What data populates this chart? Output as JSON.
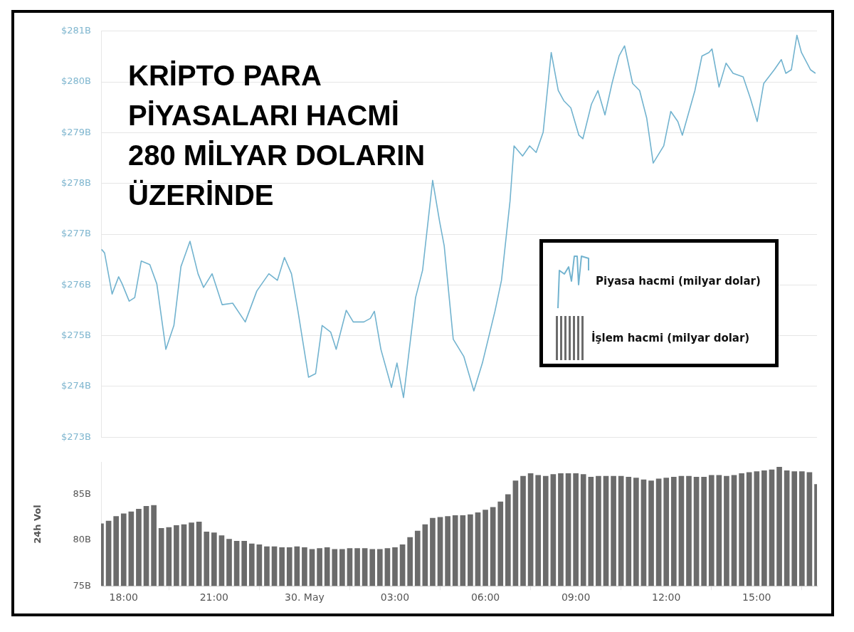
{
  "chart_data": [
    {
      "type": "line",
      "title": "KRİPTO PARA\nPİYASALARI HACMİ\n280 MİLYAR DOLARIN\nÜZERİNDE",
      "tick_labels": "y",
      "xlim": [
        "--05-29T17:15",
        "--05-30T17:00"
      ],
      "ylim": [
        273,
        281
      ],
      "yticks": [
        {
          "value": 273,
          "label": "$273B"
        },
        {
          "value": 274,
          "label": "$274B"
        },
        {
          "value": 275,
          "label": "$275B"
        },
        {
          "value": 276,
          "label": "$276B"
        },
        {
          "value": 277,
          "label": "$277B"
        },
        {
          "value": 278,
          "label": "$278B"
        },
        {
          "value": 279,
          "label": "$279B"
        },
        {
          "value": 280,
          "label": "$280B"
        },
        {
          "value": 281,
          "label": "$281B"
        }
      ],
      "grid": "y",
      "legend": "right",
      "marker": "none",
      "series": [
        {
          "name": "Piyasa hacmi (milyar dolar)",
          "color": "#72b3cf",
          "x": [
            "--05-29T17:16",
            "--05-29T17:22",
            "--05-29T17:37",
            "--05-29T17:50",
            "--05-29T17:57",
            "--05-29T18:11",
            "--05-29T18:22",
            "--05-29T18:35",
            "--05-29T18:52",
            "--05-29T19:06",
            "--05-29T19:24",
            "--05-29T19:40",
            "--05-29T19:54",
            "--05-29T20:12",
            "--05-29T20:28",
            "--05-29T20:39",
            "--05-29T20:56",
            "--05-29T21:16",
            "--05-29T21:37",
            "--05-29T22:02",
            "--05-29T22:25",
            "--05-29T22:49",
            "--05-29T23:06",
            "--05-29T23:20",
            "--05-29T23:34",
            "--05-29T23:47",
            "--05-30T00:08",
            "--05-30T00:22",
            "--05-30T00:35",
            "--05-30T00:52",
            "--05-30T01:03",
            "--05-30T01:23",
            "--05-30T01:37",
            "--05-30T01:58",
            "--05-30T02:11",
            "--05-30T02:19",
            "--05-30T02:32",
            "--05-30T02:53",
            "--05-30T03:04",
            "--05-30T03:17",
            "--05-30T03:41",
            "--05-30T03:55",
            "--05-30T04:15",
            "--05-30T04:29",
            "--05-30T04:38",
            "--05-30T04:56",
            "--05-30T05:17",
            "--05-30T05:37",
            "--05-30T05:54",
            "--05-30T06:19",
            "--05-30T06:32",
            "--05-30T06:49",
            "--05-30T06:57",
            "--05-30T07:14",
            "--05-30T07:28",
            "--05-30T07:41",
            "--05-30T07:55",
            "--05-30T08:11",
            "--05-30T08:25",
            "--05-30T08:36",
            "--05-30T08:50",
            "--05-30T09:06",
            "--05-30T09:14",
            "--05-30T09:31",
            "--05-30T09:44",
            "--05-30T09:58",
            "--05-30T10:12",
            "--05-30T10:26",
            "--05-30T10:37",
            "--05-30T10:53",
            "--05-30T11:07",
            "--05-30T11:21",
            "--05-30T11:34",
            "--05-30T11:55",
            "--05-30T12:09",
            "--05-30T12:23",
            "--05-30T12:32",
            "--05-30T12:57",
            "--05-30T13:11",
            "--05-30T13:25",
            "--05-30T13:31",
            "--05-30T13:45",
            "--05-30T13:59",
            "--05-30T14:13",
            "--05-30T14:33",
            "--05-30T14:47",
            "--05-30T15:01",
            "--05-30T15:14",
            "--05-30T15:35",
            "--05-30T15:49",
            "--05-30T15:58",
            "--05-30T16:09",
            "--05-30T16:20",
            "--05-30T16:29",
            "--05-30T16:47",
            "--05-30T16:57"
          ],
          "values": [
            276.7,
            276.63,
            275.82,
            276.16,
            276.02,
            275.68,
            275.75,
            276.47,
            276.4,
            276.02,
            274.73,
            275.2,
            276.36,
            276.86,
            276.22,
            275.95,
            276.22,
            275.61,
            275.64,
            275.27,
            275.88,
            276.22,
            276.09,
            276.54,
            276.22,
            275.48,
            274.18,
            274.25,
            275.2,
            275.07,
            274.73,
            275.5,
            275.27,
            275.27,
            275.34,
            275.48,
            274.73,
            273.98,
            274.46,
            273.78,
            275.75,
            276.29,
            278.06,
            277.24,
            276.77,
            274.93,
            274.59,
            273.91,
            274.46,
            275.48,
            276.09,
            277.65,
            278.74,
            278.54,
            278.74,
            278.61,
            279.01,
            280.58,
            279.83,
            279.63,
            279.49,
            278.95,
            278.88,
            279.56,
            279.83,
            279.35,
            279.97,
            280.51,
            280.71,
            279.97,
            279.83,
            279.29,
            278.4,
            278.74,
            279.42,
            279.22,
            278.95,
            279.83,
            280.51,
            280.58,
            280.65,
            279.9,
            280.37,
            280.17,
            280.1,
            279.69,
            279.22,
            279.97,
            280.24,
            280.44,
            280.17,
            280.24,
            280.92,
            280.58,
            280.24,
            280.17
          ]
        }
      ]
    },
    {
      "type": "bar",
      "ylabel": "24h Vol",
      "xlim": [
        "--05-29T17:15",
        "--05-30T17:00"
      ],
      "xticks": [
        {
          "value": "--05-29T18:00",
          "label": "18:00"
        },
        {
          "value": "--05-29T21:00",
          "label": "21:00"
        },
        {
          "value": "--05-30T00:00",
          "label": "30. May"
        },
        {
          "value": "--05-30T03:00",
          "label": "03:00"
        },
        {
          "value": "--05-30T06:00",
          "label": "06:00"
        },
        {
          "value": "--05-30T09:00",
          "label": "09:00"
        },
        {
          "value": "--05-30T12:00",
          "label": "12:00"
        },
        {
          "value": "--05-30T15:00",
          "label": "15:00"
        }
      ],
      "ylim": [
        75,
        88.5
      ],
      "yticks": [
        {
          "value": 75,
          "label": "75B"
        },
        {
          "value": 80,
          "label": "80B"
        },
        {
          "value": 85,
          "label": "85B"
        }
      ],
      "series": [
        {
          "name": "İşlem hacmi (milyar dolar)",
          "color": "#6b6b6b",
          "x": [
            "--05-29T17:15",
            "--05-29T17:30",
            "--05-29T17:45",
            "--05-29T18:00",
            "--05-29T18:15",
            "--05-29T18:30",
            "--05-29T18:45",
            "--05-29T19:00",
            "--05-29T19:15",
            "--05-29T19:30",
            "--05-29T19:45",
            "--05-29T20:00",
            "--05-29T20:15",
            "--05-29T20:30",
            "--05-29T20:45",
            "--05-29T21:00",
            "--05-29T21:15",
            "--05-29T21:30",
            "--05-29T21:45",
            "--05-29T22:00",
            "--05-29T22:15",
            "--05-29T22:30",
            "--05-29T22:45",
            "--05-29T23:00",
            "--05-29T23:15",
            "--05-29T23:30",
            "--05-29T23:45",
            "--05-30T00:00",
            "--05-30T00:15",
            "--05-30T00:30",
            "--05-30T00:45",
            "--05-30T01:00",
            "--05-30T01:15",
            "--05-30T01:30",
            "--05-30T01:45",
            "--05-30T02:00",
            "--05-30T02:15",
            "--05-30T02:30",
            "--05-30T02:45",
            "--05-30T03:00",
            "--05-30T03:15",
            "--05-30T03:30",
            "--05-30T03:45",
            "--05-30T04:00",
            "--05-30T04:15",
            "--05-30T04:30",
            "--05-30T04:45",
            "--05-30T05:00",
            "--05-30T05:15",
            "--05-30T05:30",
            "--05-30T05:45",
            "--05-30T06:00",
            "--05-30T06:15",
            "--05-30T06:30",
            "--05-30T06:45",
            "--05-30T07:00",
            "--05-30T07:15",
            "--05-30T07:30",
            "--05-30T07:45",
            "--05-30T08:00",
            "--05-30T08:15",
            "--05-30T08:30",
            "--05-30T08:45",
            "--05-30T09:00",
            "--05-30T09:15",
            "--05-30T09:30",
            "--05-30T09:45",
            "--05-30T10:00",
            "--05-30T10:15",
            "--05-30T10:30",
            "--05-30T10:45",
            "--05-30T11:00",
            "--05-30T11:15",
            "--05-30T11:30",
            "--05-30T11:45",
            "--05-30T12:00",
            "--05-30T12:15",
            "--05-30T12:30",
            "--05-30T12:45",
            "--05-30T13:00",
            "--05-30T13:15",
            "--05-30T13:30",
            "--05-30T13:45",
            "--05-30T14:00",
            "--05-30T14:15",
            "--05-30T14:30",
            "--05-30T14:45",
            "--05-30T15:00",
            "--05-30T15:15",
            "--05-30T15:30",
            "--05-30T15:45",
            "--05-30T16:00",
            "--05-30T16:15",
            "--05-30T16:30",
            "--05-30T16:45",
            "--05-30T17:00"
          ],
          "values": [
            81.8,
            82.1,
            82.6,
            82.9,
            83.1,
            83.4,
            83.7,
            83.8,
            81.3,
            81.4,
            81.6,
            81.7,
            81.9,
            82.0,
            80.9,
            80.8,
            80.5,
            80.1,
            79.9,
            79.9,
            79.6,
            79.5,
            79.3,
            79.3,
            79.2,
            79.2,
            79.3,
            79.2,
            79.0,
            79.1,
            79.2,
            79.0,
            79.0,
            79.1,
            79.1,
            79.1,
            79.0,
            79.0,
            79.1,
            79.2,
            79.5,
            80.3,
            81.0,
            81.7,
            82.4,
            82.5,
            82.6,
            82.7,
            82.7,
            82.8,
            83.0,
            83.3,
            83.6,
            84.2,
            85.0,
            86.5,
            87.0,
            87.3,
            87.1,
            87.0,
            87.2,
            87.3,
            87.3,
            87.3,
            87.2,
            86.9,
            87.0,
            87.0,
            87.0,
            87.0,
            86.9,
            86.8,
            86.6,
            86.5,
            86.7,
            86.8,
            86.9,
            87.0,
            87.0,
            86.9,
            86.9,
            87.1,
            87.1,
            87.0,
            87.1,
            87.3,
            87.4,
            87.5,
            87.6,
            87.7,
            88.0,
            87.6,
            87.5,
            87.5,
            87.4,
            86.1
          ]
        }
      ]
    }
  ]
}
